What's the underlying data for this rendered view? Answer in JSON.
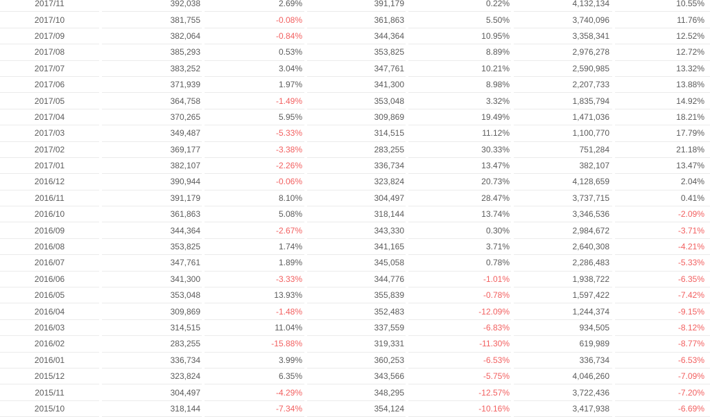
{
  "colors": {
    "text": "#5b5b5b",
    "negative_value": "#f25f5f",
    "row_border": "#ebebeb",
    "background": "#ffffff"
  },
  "table": {
    "header_visible": false,
    "negative_style": "values beginning with '-' are rendered in red"
  },
  "chart_data": {
    "type": "table",
    "header_visible": false,
    "columns_count": 7,
    "rows": [
      [
        "2017/11",
        "392,038",
        "2.69%",
        "391,179",
        "0.22%",
        "4,132,134",
        "10.55%"
      ],
      [
        "2017/10",
        "381,755",
        "-0.08%",
        "361,863",
        "5.50%",
        "3,740,096",
        "11.76%"
      ],
      [
        "2017/09",
        "382,064",
        "-0.84%",
        "344,364",
        "10.95%",
        "3,358,341",
        "12.52%"
      ],
      [
        "2017/08",
        "385,293",
        "0.53%",
        "353,825",
        "8.89%",
        "2,976,278",
        "12.72%"
      ],
      [
        "2017/07",
        "383,252",
        "3.04%",
        "347,761",
        "10.21%",
        "2,590,985",
        "13.32%"
      ],
      [
        "2017/06",
        "371,939",
        "1.97%",
        "341,300",
        "8.98%",
        "2,207,733",
        "13.88%"
      ],
      [
        "2017/05",
        "364,758",
        "-1.49%",
        "353,048",
        "3.32%",
        "1,835,794",
        "14.92%"
      ],
      [
        "2017/04",
        "370,265",
        "5.95%",
        "309,869",
        "19.49%",
        "1,471,036",
        "18.21%"
      ],
      [
        "2017/03",
        "349,487",
        "-5.33%",
        "314,515",
        "11.12%",
        "1,100,770",
        "17.79%"
      ],
      [
        "2017/02",
        "369,177",
        "-3.38%",
        "283,255",
        "30.33%",
        "751,284",
        "21.18%"
      ],
      [
        "2017/01",
        "382,107",
        "-2.26%",
        "336,734",
        "13.47%",
        "382,107",
        "13.47%"
      ],
      [
        "2016/12",
        "390,944",
        "-0.06%",
        "323,824",
        "20.73%",
        "4,128,659",
        "2.04%"
      ],
      [
        "2016/11",
        "391,179",
        "8.10%",
        "304,497",
        "28.47%",
        "3,737,715",
        "0.41%"
      ],
      [
        "2016/10",
        "361,863",
        "5.08%",
        "318,144",
        "13.74%",
        "3,346,536",
        "-2.09%"
      ],
      [
        "2016/09",
        "344,364",
        "-2.67%",
        "343,330",
        "0.30%",
        "2,984,672",
        "-3.71%"
      ],
      [
        "2016/08",
        "353,825",
        "1.74%",
        "341,165",
        "3.71%",
        "2,640,308",
        "-4.21%"
      ],
      [
        "2016/07",
        "347,761",
        "1.89%",
        "345,058",
        "0.78%",
        "2,286,483",
        "-5.33%"
      ],
      [
        "2016/06",
        "341,300",
        "-3.33%",
        "344,776",
        "-1.01%",
        "1,938,722",
        "-6.35%"
      ],
      [
        "2016/05",
        "353,048",
        "13.93%",
        "355,839",
        "-0.78%",
        "1,597,422",
        "-7.42%"
      ],
      [
        "2016/04",
        "309,869",
        "-1.48%",
        "352,483",
        "-12.09%",
        "1,244,374",
        "-9.15%"
      ],
      [
        "2016/03",
        "314,515",
        "11.04%",
        "337,559",
        "-6.83%",
        "934,505",
        "-8.12%"
      ],
      [
        "2016/02",
        "283,255",
        "-15.88%",
        "319,331",
        "-11.30%",
        "619,989",
        "-8.77%"
      ],
      [
        "2016/01",
        "336,734",
        "3.99%",
        "360,253",
        "-6.53%",
        "336,734",
        "-6.53%"
      ],
      [
        "2015/12",
        "323,824",
        "6.35%",
        "343,566",
        "-5.75%",
        "4,046,260",
        "-7.09%"
      ],
      [
        "2015/11",
        "304,497",
        "-4.29%",
        "348,295",
        "-12.57%",
        "3,722,436",
        "-7.20%"
      ],
      [
        "2015/10",
        "318,144",
        "-7.34%",
        "354,124",
        "-10.16%",
        "3,417,938",
        "-6.69%"
      ]
    ]
  }
}
